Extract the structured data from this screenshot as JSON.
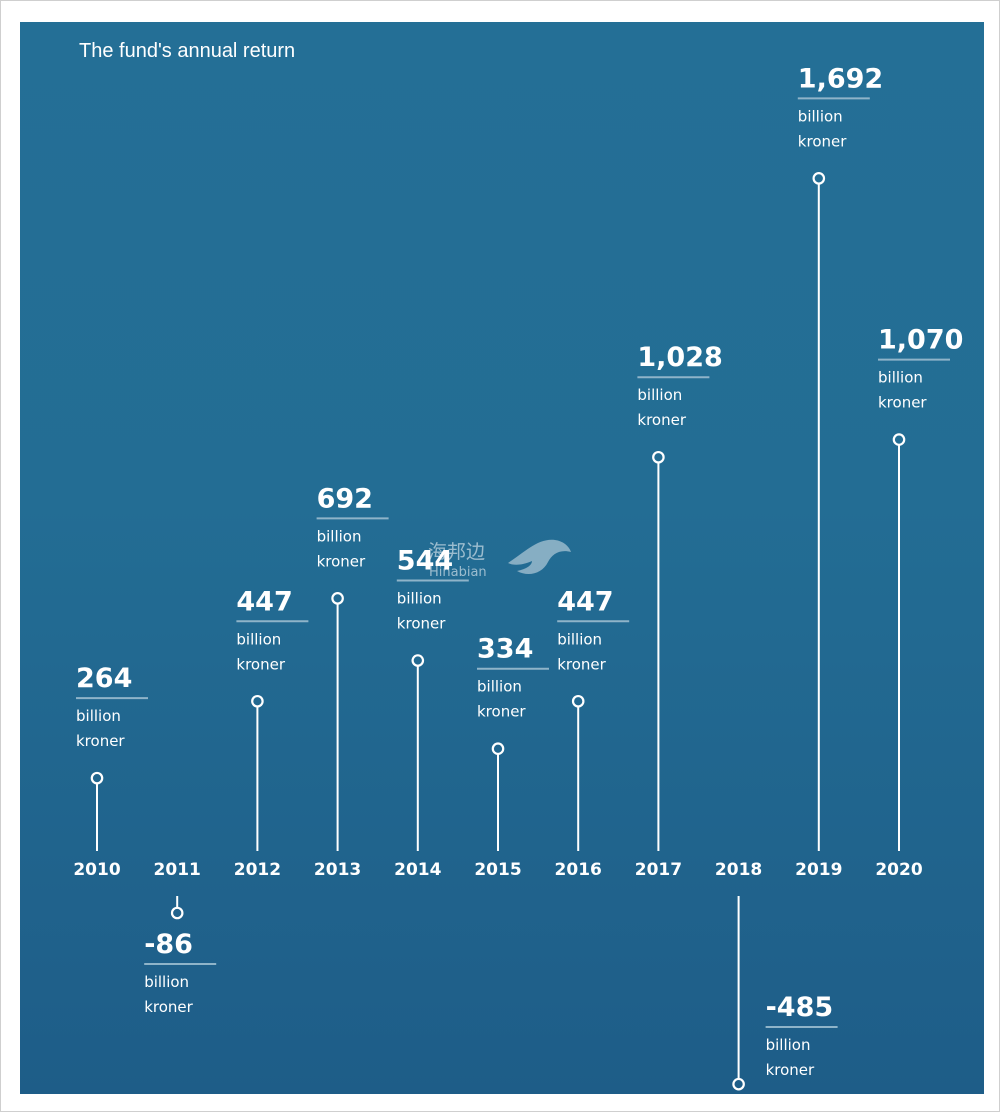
{
  "chart_data": {
    "type": "lollipop",
    "title": "The fund's annual return",
    "unit_line1": "billion",
    "unit_line2": "kroner",
    "categories": [
      "2010",
      "2011",
      "2012",
      "2013",
      "2014",
      "2015",
      "2016",
      "2017",
      "2018",
      "2019",
      "2020"
    ],
    "values": [
      264,
      -86,
      447,
      692,
      544,
      334,
      447,
      1028,
      -485,
      1692,
      1070
    ],
    "value_labels": [
      "264",
      "-86",
      "447",
      "692",
      "544",
      "334",
      "447",
      "1,028",
      "-485",
      "1,692",
      "1,070"
    ]
  },
  "watermark": {
    "cn": "海邦边",
    "en": "Hinabian"
  },
  "colors": {
    "background_top": "#246f96",
    "background_bottom": "#1e5d88",
    "foreground": "#ffffff",
    "label_underline": "#8fb4c9"
  }
}
